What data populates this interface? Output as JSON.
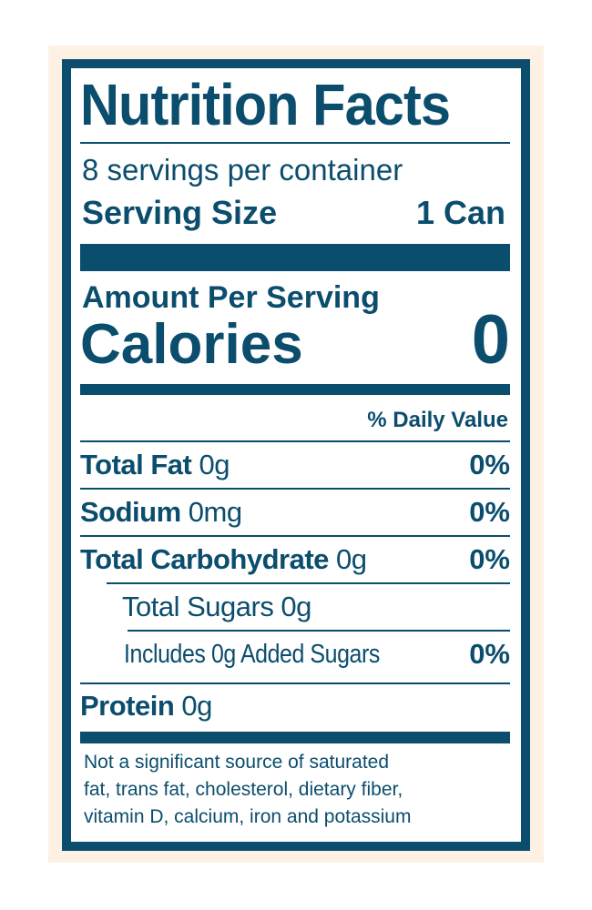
{
  "title": "Nutrition Facts",
  "servings_per_container": "8 servings per container",
  "serving_size": {
    "label": "Serving Size",
    "value": "1 Can"
  },
  "amount_per_serving": "Amount Per Serving",
  "calories": {
    "label": "Calories",
    "value": "0"
  },
  "daily_value_header": "% Daily Value",
  "nutrients": [
    {
      "name": "Total Fat",
      "amount": "0g",
      "dv": "0%"
    },
    {
      "name": "Sodium",
      "amount": "0mg",
      "dv": "0%"
    },
    {
      "name": "Total Carbohydrate",
      "amount": "0g",
      "dv": "0%"
    },
    {
      "name": "Total Sugars 0g"
    },
    {
      "name": "Includes 0g Added Sugars",
      "dv": "0%"
    },
    {
      "name": "Protein",
      "amount": "0g"
    }
  ],
  "footnote": [
    "Not a significant source of saturated",
    "fat, trans fat, cholesterol, dietary fiber,",
    "vitamin D, calcium, iron and potassium"
  ],
  "colors": {
    "ink": "#0b4d6d",
    "background": "#fdf1e4"
  }
}
